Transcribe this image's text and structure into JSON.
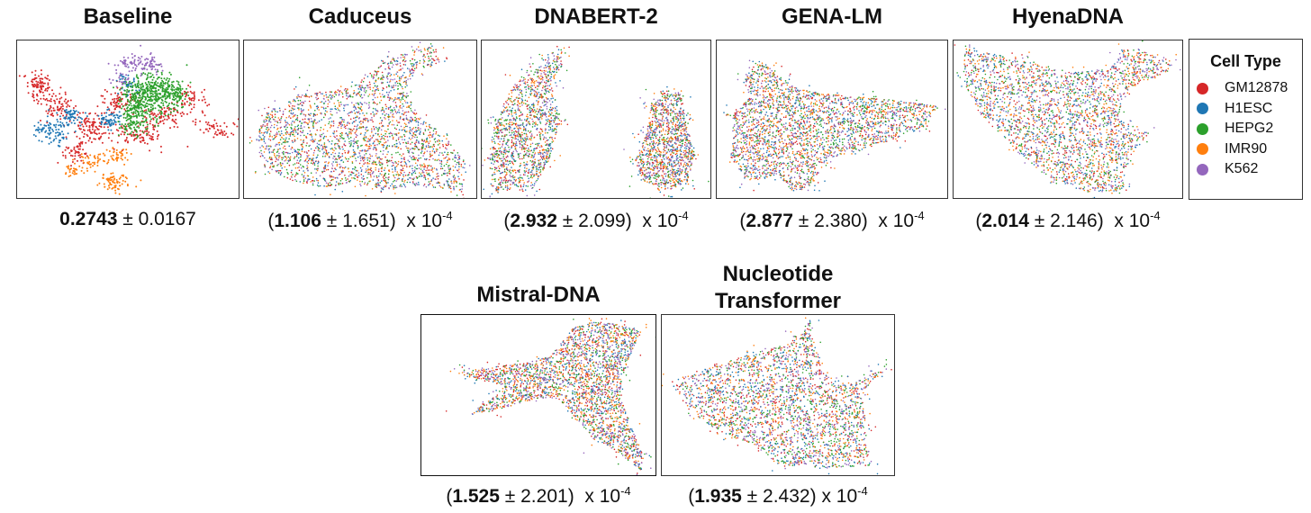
{
  "chart_data": {
    "type": "scatter",
    "legend": {
      "title": "Cell Type",
      "placement": "right",
      "entries": [
        {
          "label": "GM12878",
          "color": "#d62728"
        },
        {
          "label": "H1ESC",
          "color": "#1f77b4"
        },
        {
          "label": "HEPG2",
          "color": "#2ca02c"
        },
        {
          "label": "IMR90",
          "color": "#ff7f0e"
        },
        {
          "label": "K562",
          "color": "#9467bd"
        }
      ]
    },
    "panels": [
      {
        "key": "baseline",
        "title": "Baseline",
        "mean": "0.2743",
        "std": "0.0167",
        "scale": "",
        "clustered": true
      },
      {
        "key": "caduceus",
        "title": "Caduceus",
        "mean": "1.106",
        "std": "1.651",
        "scale": "x 10",
        "exp": "-4",
        "clustered": false
      },
      {
        "key": "dnabert2",
        "title": "DNABERT-2",
        "mean": "2.932",
        "std": "2.099",
        "scale": "x 10",
        "exp": "-4",
        "clustered": false
      },
      {
        "key": "genalm",
        "title": "GENA-LM",
        "mean": "2.877",
        "std": "2.380",
        "scale": "x 10",
        "exp": "-4",
        "clustered": false
      },
      {
        "key": "hyenadna",
        "title": "HyenaDNA",
        "mean": "2.014",
        "std": "2.146",
        "scale": "x 10",
        "exp": "-4",
        "clustered": false
      },
      {
        "key": "mistral",
        "title": "Mistral-DNA",
        "mean": "1.525",
        "std": "2.201",
        "scale": "x 10",
        "exp": "-4",
        "clustered": false
      },
      {
        "key": "nt",
        "title": "Nucleotide\nTransformer",
        "mean": "1.935",
        "std": "2.432",
        "scale": "x 10",
        "exp": "-4",
        "clustered": false
      }
    ]
  }
}
